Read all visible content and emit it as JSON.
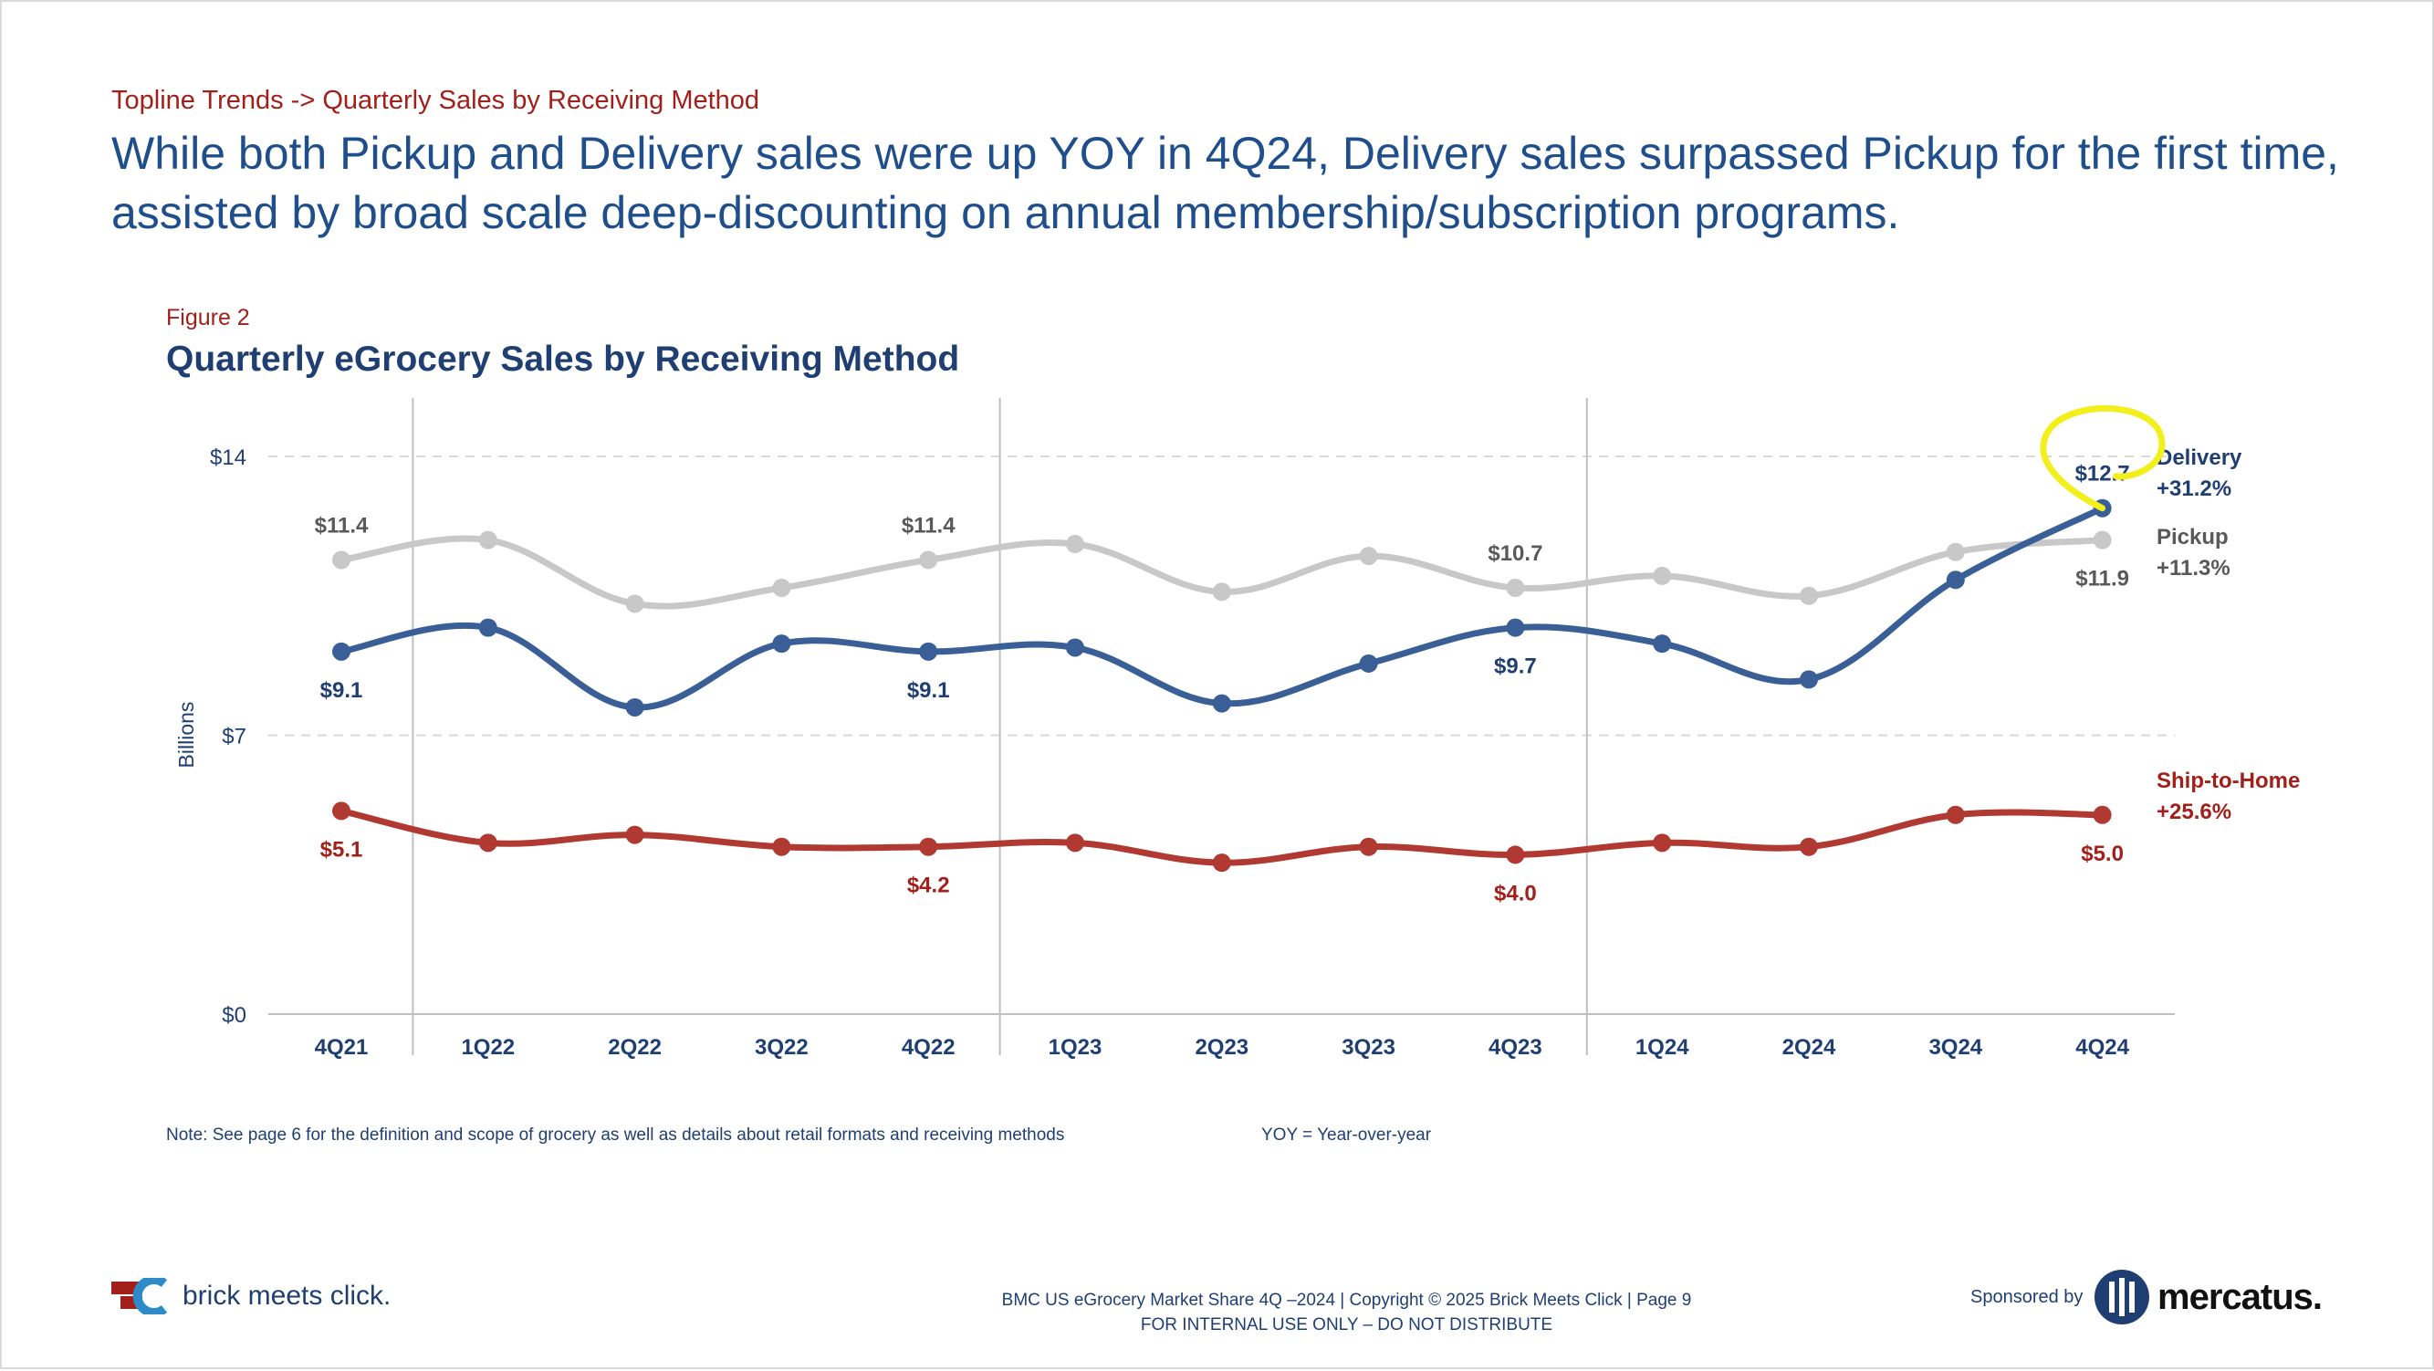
{
  "header": {
    "breadcrumb": "Topline Trends -> Quarterly Sales by Receiving Method",
    "headline": "While both Pickup and Delivery sales were up YOY in 4Q24, Delivery sales surpassed Pickup for the first time, assisted by broad scale deep-discounting on annual membership/subscription programs."
  },
  "figure": {
    "label": "Figure 2"
  },
  "chart_data": {
    "type": "line",
    "title": "Quarterly eGrocery Sales by Receiving Method",
    "xlabel": "",
    "ylabel": "Billions",
    "ylim": [
      0,
      14
    ],
    "y_ticks": [
      {
        "value": 0,
        "label": "$0"
      },
      {
        "value": 7,
        "label": "$7"
      },
      {
        "value": 14,
        "label": "$14"
      }
    ],
    "grid": "horizontal dashed at $7 and $14",
    "categories": [
      "4Q21",
      "1Q22",
      "2Q22",
      "3Q22",
      "4Q22",
      "1Q23",
      "2Q23",
      "3Q23",
      "4Q23",
      "1Q24",
      "2Q24",
      "3Q24",
      "4Q24"
    ],
    "year_separators_after": [
      "4Q21",
      "4Q22",
      "4Q23"
    ],
    "series": [
      {
        "name": "Pickup",
        "yoy": "+11.3%",
        "color": "#c8c8c8",
        "label_color": "#595959",
        "values": [
          11.4,
          11.9,
          10.3,
          10.7,
          11.4,
          11.8,
          10.6,
          11.5,
          10.7,
          11.0,
          10.5,
          11.6,
          11.9
        ],
        "data_labels": [
          {
            "index": 0,
            "text": "$11.4",
            "side": "above"
          },
          {
            "index": 4,
            "text": "$11.4",
            "side": "above"
          },
          {
            "index": 8,
            "text": "$10.7",
            "side": "above"
          },
          {
            "index": 12,
            "text": "$11.9",
            "side": "below"
          }
        ]
      },
      {
        "name": "Delivery",
        "yoy": "+31.2%",
        "color": "#3a5f96",
        "label_color": "#1f3f73",
        "values": [
          9.1,
          9.7,
          7.7,
          9.3,
          9.1,
          9.2,
          7.8,
          8.8,
          9.7,
          9.3,
          8.4,
          10.9,
          12.7
        ],
        "data_labels": [
          {
            "index": 0,
            "text": "$9.1",
            "side": "below"
          },
          {
            "index": 4,
            "text": "$9.1",
            "side": "below"
          },
          {
            "index": 8,
            "text": "$9.7",
            "side": "below"
          },
          {
            "index": 12,
            "text": "$12.7",
            "side": "above"
          }
        ],
        "highlight_index": 12,
        "highlight_color": "#f2ef1c"
      },
      {
        "name": "Ship-to-Home",
        "yoy": "+25.6%",
        "color": "#b03a32",
        "label_color": "#a31f1a",
        "values": [
          5.1,
          4.3,
          4.5,
          4.2,
          4.2,
          4.3,
          3.8,
          4.2,
          4.0,
          4.3,
          4.2,
          5.0,
          5.0
        ],
        "data_labels": [
          {
            "index": 0,
            "text": "$5.1",
            "side": "below"
          },
          {
            "index": 4,
            "text": "$4.2",
            "side": "below"
          },
          {
            "index": 8,
            "text": "$4.0",
            "side": "below"
          },
          {
            "index": 12,
            "text": "$5.0",
            "side": "below"
          }
        ]
      }
    ]
  },
  "notes": {
    "note": "Note: See page 6 for the definition and scope of grocery as well as details about retail formats and receiving methods",
    "yoy": "YOY = Year-over-year"
  },
  "footer": {
    "line1": "BMC US eGrocery Market Share 4Q –2024   |   Copyright © 2025 Brick Meets Click   |   Page 9",
    "line2": "FOR INTERNAL USE ONLY – DO NOT DISTRIBUTE",
    "logo_left": "brick meets click.",
    "sponsored_by": "Sponsored by",
    "logo_right": "mercatus."
  }
}
